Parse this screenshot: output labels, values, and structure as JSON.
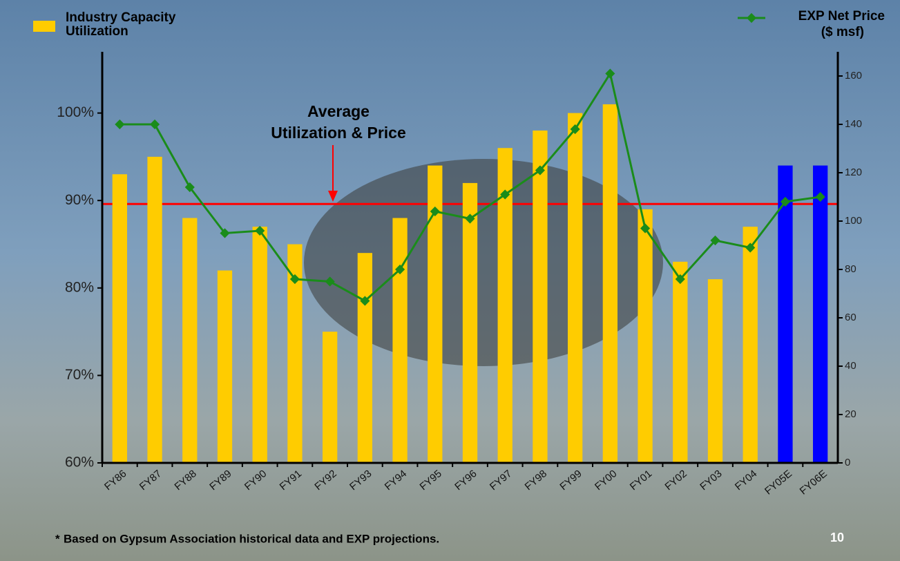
{
  "chart_data": {
    "type": "bar",
    "categories": [
      "FY86",
      "FY87",
      "FY88",
      "FY89",
      "FY90",
      "FY91",
      "FY92",
      "FY93",
      "FY94",
      "FY95",
      "FY96",
      "FY97",
      "FY98",
      "FY99",
      "FY00",
      "FY01",
      "FY02",
      "FY03",
      "FY04",
      "FY05E",
      "FY06E"
    ],
    "series": [
      {
        "name": "Industry Capacity Utilization",
        "type": "bar",
        "colors": [
          "#ffcc00",
          "#ffcc00",
          "#ffcc00",
          "#ffcc00",
          "#ffcc00",
          "#ffcc00",
          "#ffcc00",
          "#ffcc00",
          "#ffcc00",
          "#ffcc00",
          "#ffcc00",
          "#ffcc00",
          "#ffcc00",
          "#ffcc00",
          "#ffcc00",
          "#ffcc00",
          "#ffcc00",
          "#ffcc00",
          "#ffcc00",
          "#0000ff",
          "#0000ff"
        ],
        "values": [
          93,
          95,
          88,
          82,
          87,
          85,
          75,
          84,
          88,
          94,
          92,
          96,
          98,
          100,
          101,
          89,
          83,
          81,
          87,
          94,
          94
        ]
      },
      {
        "name": "EXP Net Price",
        "type": "line",
        "axis": "y2",
        "color": "#1a8c1a",
        "values": [
          140,
          140,
          114,
          95,
          96,
          76,
          75,
          67,
          80,
          104,
          101,
          111,
          121,
          138,
          161,
          97,
          76,
          92,
          89,
          108,
          110
        ]
      }
    ],
    "y2label": "($ msf)",
    "ylim": [
      60,
      107
    ],
    "yticks": [
      {
        "value": 60,
        "label": "60%"
      },
      {
        "value": 70,
        "label": "70%"
      },
      {
        "value": 80,
        "label": "80%"
      },
      {
        "value": 90,
        "label": "90%"
      },
      {
        "value": 100,
        "label": "100%"
      }
    ],
    "y2lim": [
      0,
      170
    ],
    "y2ticks": [
      0,
      20,
      40,
      60,
      80,
      100,
      120,
      140,
      160
    ],
    "reference_line": {
      "value": 89.6,
      "color": "#ff0000"
    },
    "annotation": [
      "Average",
      "Utilization & Price"
    ]
  },
  "footnote": {
    "marker": "*",
    "text": "Based on Gypsum Association historical data and EXP projections."
  },
  "page_number": "10"
}
